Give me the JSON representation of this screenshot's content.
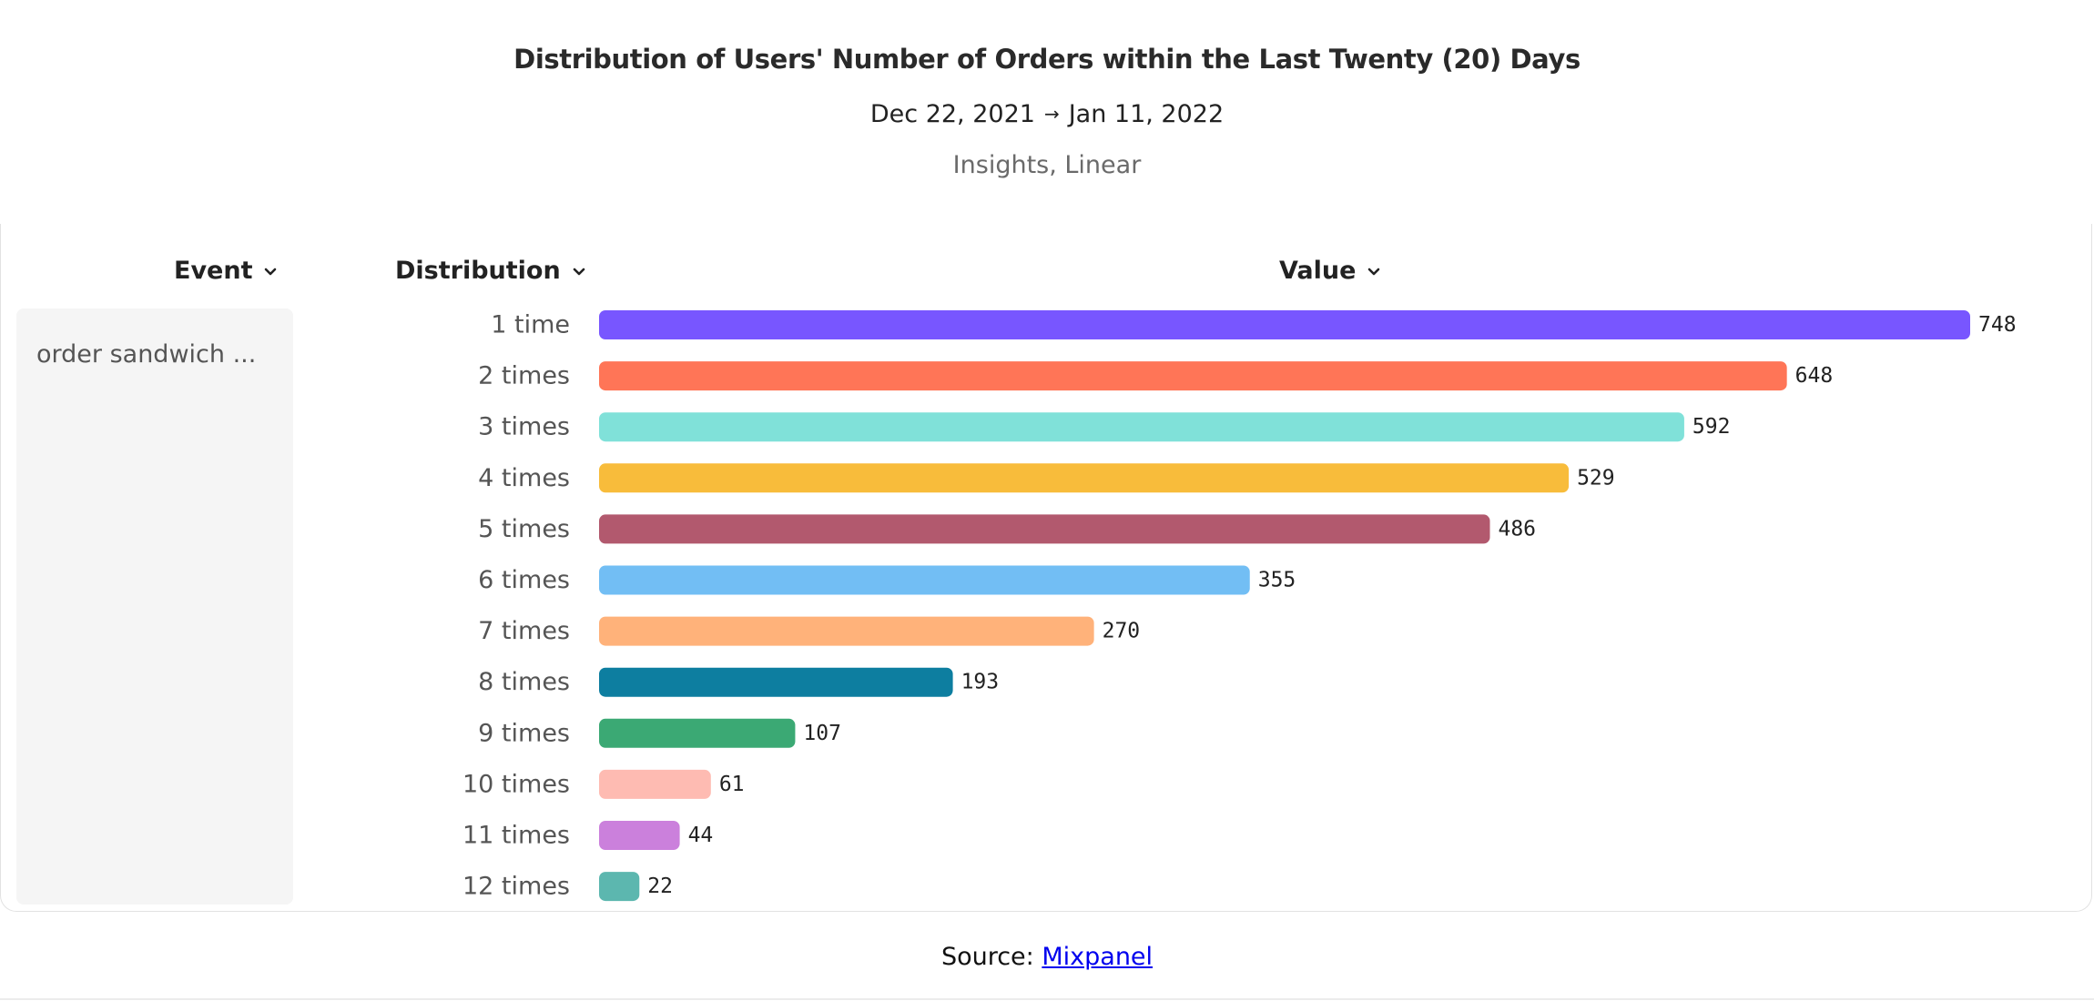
{
  "header": {
    "title": "Distribution of Users' Number of Orders within the Last Twenty (20) Days",
    "date_start": "Dec 22, 2021",
    "arrow": "→",
    "date_end": "Jan 11, 2022",
    "subtitle": "Insights, Linear"
  },
  "columns": {
    "event": "Event",
    "distribution": "Distribution",
    "value": "Value"
  },
  "event_name": "order sandwich ...",
  "source": {
    "prefix": "Source: ",
    "link_text": "Mixpanel"
  },
  "chart_data": {
    "type": "bar",
    "orientation": "horizontal",
    "title": "Distribution of Users' Number of Orders within the Last Twenty (20) Days",
    "categories": [
      "1 time",
      "2 times",
      "3 times",
      "4 times",
      "5 times",
      "6 times",
      "7 times",
      "8 times",
      "9 times",
      "10 times",
      "11 times",
      "12 times"
    ],
    "values": [
      748,
      648,
      592,
      529,
      486,
      355,
      270,
      193,
      107,
      61,
      44,
      22
    ],
    "colors": [
      "#7856ff",
      "#ff7557",
      "#80e1d9",
      "#f8bc3b",
      "#b2596e",
      "#72bef4",
      "#ffb27a",
      "#0d7ea0",
      "#3ba974",
      "#febbb2",
      "#cb80dc",
      "#5cb7af"
    ],
    "xlim": [
      0,
      748
    ],
    "grid": false,
    "legend": "none"
  }
}
